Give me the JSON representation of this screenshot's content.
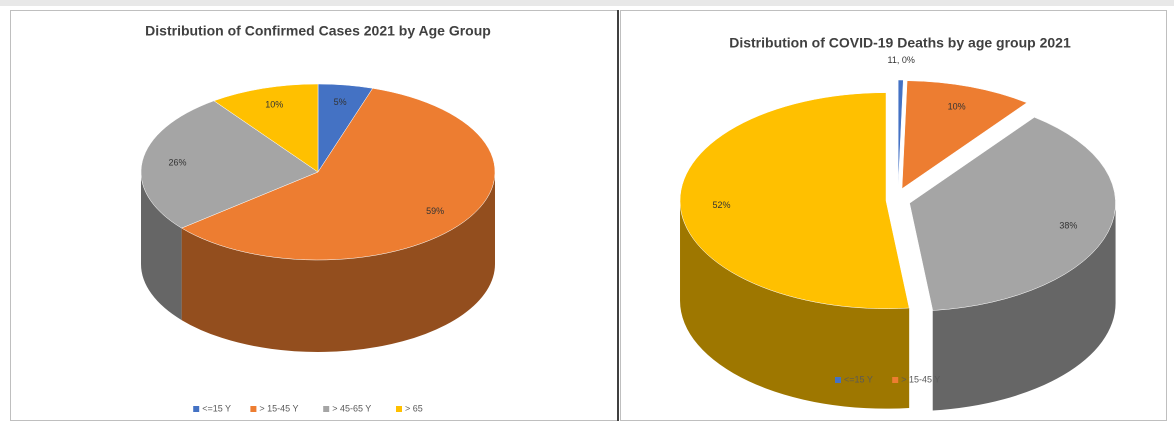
{
  "chart_data": [
    {
      "type": "pie3d",
      "title": "Distribution of Confirmed Cases 2021 by Age Group",
      "categories": [
        "<=15 Y",
        "> 15-45 Y",
        "> 45-65 Y",
        "> 65"
      ],
      "values": [
        5,
        59,
        26,
        10
      ],
      "value_labels": [
        "5%",
        "59%",
        "26%",
        "10%"
      ],
      "colors": [
        "#4472c4",
        "#ed7d31",
        "#a5a5a5",
        "#ffc000"
      ],
      "legend": "bottom",
      "explode": false
    },
    {
      "type": "pie3d",
      "title": "Distribution of COVID-19 Deaths by age group 2021",
      "categories": [
        "<=15 Y",
        "> 15-45 Y",
        null,
        null
      ],
      "values": [
        0.4,
        10,
        38,
        52
      ],
      "value_labels": [
        "11, 0%",
        "10%",
        "38%",
        "52%"
      ],
      "colors": [
        "#4472c4",
        "#ed7d31",
        "#a5a5a5",
        "#ffc000"
      ],
      "legend": "bottom",
      "explode": true
    }
  ]
}
